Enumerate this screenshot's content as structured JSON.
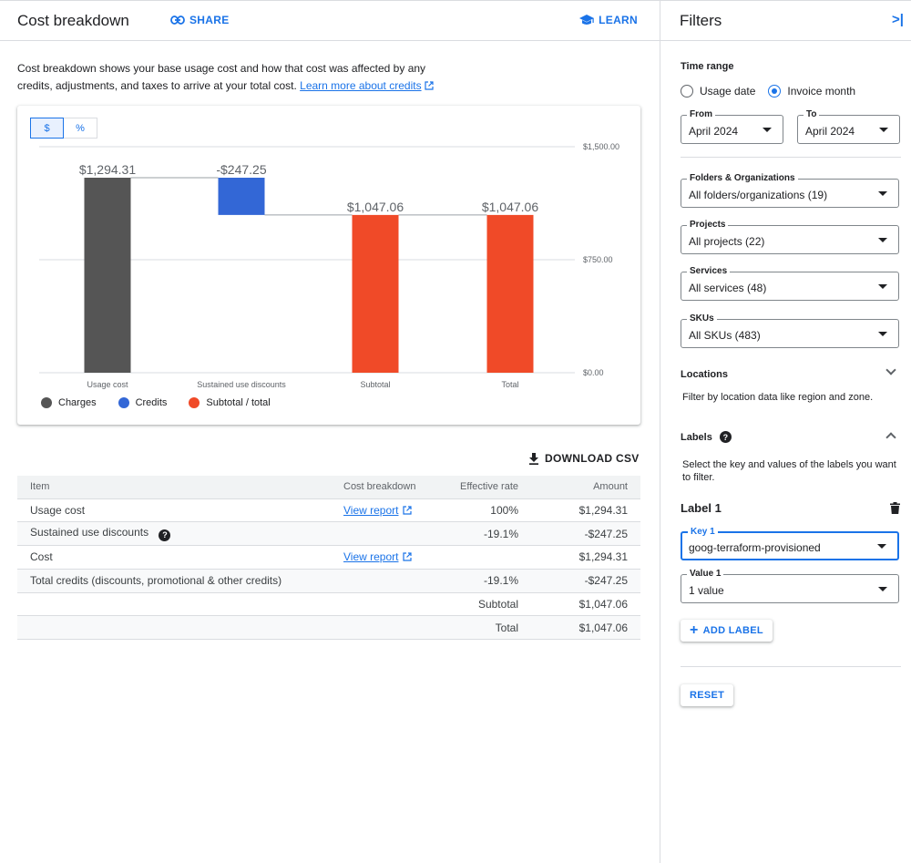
{
  "header": {
    "title": "Cost breakdown",
    "share_label": "SHARE",
    "learn_label": "LEARN"
  },
  "intro": {
    "text": "Cost breakdown shows your base usage cost and how that cost was affected by any credits, adjustments, and taxes to arrive at your total cost.",
    "link": "Learn more about credits"
  },
  "toggle": {
    "dollar": "$",
    "percent": "%"
  },
  "chart_data": {
    "type": "bar",
    "subtype": "waterfall",
    "categories": [
      "Usage cost",
      "Sustained use discounts",
      "Subtotal",
      "Total"
    ],
    "bars": [
      {
        "category": "Usage cost",
        "start": 0,
        "end": 1294.31,
        "label": "$1,294.31",
        "color": "#555555"
      },
      {
        "category": "Sustained use discounts",
        "start": 1294.31,
        "end": 1047.06,
        "label": "-$247.25",
        "color": "#3367d6"
      },
      {
        "category": "Subtotal",
        "start": 0,
        "end": 1047.06,
        "label": "$1,047.06",
        "color": "#f04a28"
      },
      {
        "category": "Total",
        "start": 0,
        "end": 1047.06,
        "label": "$1,047.06",
        "color": "#f04a28"
      }
    ],
    "yticks": [
      {
        "value": 1500,
        "label": "$1,500.00"
      },
      {
        "value": 750,
        "label": "$750.00"
      },
      {
        "value": 0,
        "label": "$0.00"
      }
    ],
    "ylim": [
      0,
      1500
    ],
    "grid": true,
    "legend": [
      {
        "name": "Charges",
        "color": "#555555"
      },
      {
        "name": "Credits",
        "color": "#3367d6"
      },
      {
        "name": "Subtotal / total",
        "color": "#f04a28"
      }
    ],
    "legend_position": "bottom-left"
  },
  "download_label": "DOWNLOAD CSV",
  "table": {
    "headers": {
      "item": "Item",
      "breakdown": "Cost breakdown",
      "rate": "Effective rate",
      "amount": "Amount"
    },
    "rows": [
      {
        "item": "Usage cost",
        "breakdown": "View report",
        "rate": "100%",
        "amount": "$1,294.31"
      },
      {
        "item": "Sustained use discounts",
        "breakdown": "",
        "rate": "-19.1%",
        "amount": "-$247.25"
      },
      {
        "item": "Cost",
        "breakdown": "View report",
        "rate": "",
        "amount": "$1,294.31"
      },
      {
        "item": "Total credits (discounts, promotional & other credits)",
        "breakdown": "",
        "rate": "-19.1%",
        "amount": "-$247.25"
      }
    ],
    "subtotal": {
      "label": "Subtotal",
      "amount": "$1,047.06"
    },
    "total": {
      "label": "Total",
      "amount": "$1,047.06"
    }
  },
  "filters": {
    "title": "Filters",
    "time_range": {
      "label": "Time range",
      "options": [
        "Usage date",
        "Invoice month"
      ],
      "selected": "Invoice month",
      "from_label": "From",
      "from_value": "April 2024",
      "to_label": "To",
      "to_value": "April 2024"
    },
    "folders": {
      "label": "Folders & Organizations",
      "value": "All folders/organizations (19)"
    },
    "projects": {
      "label": "Projects",
      "value": "All projects (22)"
    },
    "services": {
      "label": "Services",
      "value": "All services (48)"
    },
    "skus": {
      "label": "SKUs",
      "value": "All SKUs (483)"
    },
    "locations": {
      "label": "Locations",
      "description": "Filter by location data like region and zone."
    },
    "labels": {
      "label": "Labels",
      "description": "Select the key and values of the labels you want to filter.",
      "label1_title": "Label 1",
      "key_caption": "Key 1",
      "key_value": "goog-terraform-provisioned",
      "value_caption": "Value 1",
      "value_value": "1 value",
      "add_label": "ADD LABEL"
    },
    "reset_label": "RESET"
  }
}
